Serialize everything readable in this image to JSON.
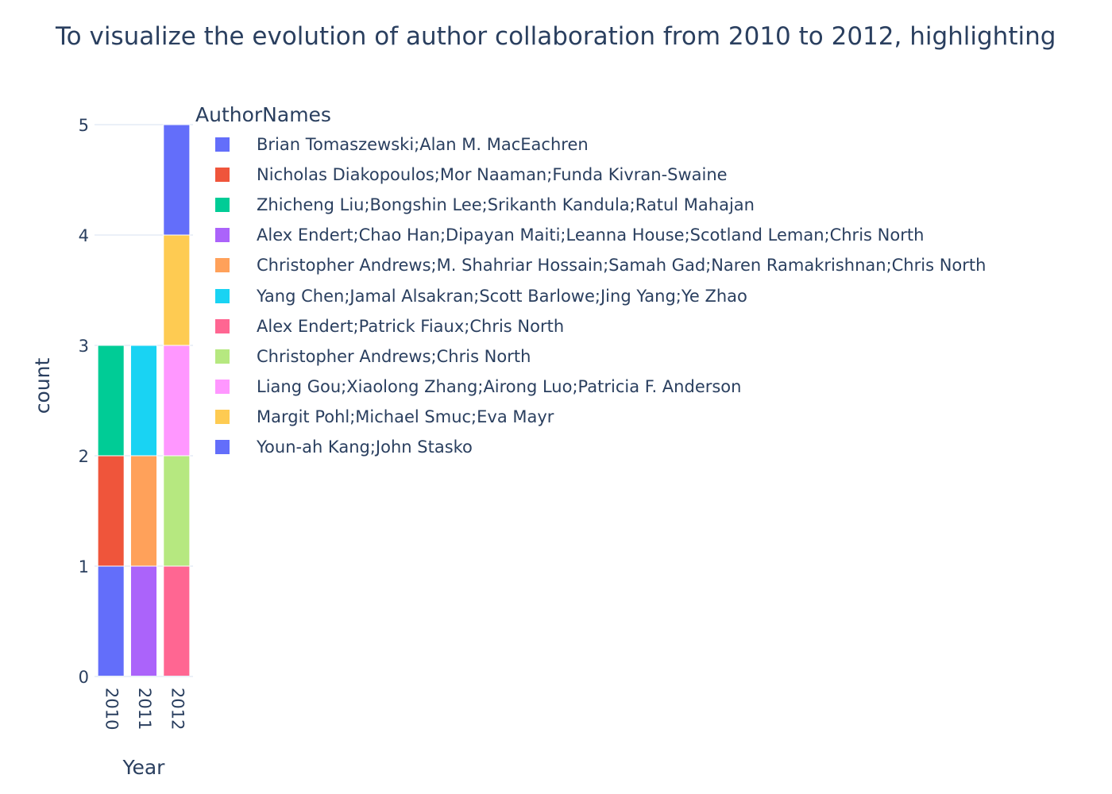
{
  "chart_data": {
    "type": "bar",
    "stacked": true,
    "title": "To visualize the evolution of author collaboration from 2010 to 2012, highlighting",
    "xlabel": "Year",
    "ylabel": "count",
    "categories": [
      "2010",
      "2011",
      "2012"
    ],
    "ylim": [
      0,
      5
    ],
    "yticks": [
      0,
      1,
      2,
      3,
      4,
      5
    ],
    "legend_title": "AuthorNames",
    "legend_position": "right",
    "grid": true,
    "series": [
      {
        "name": "Brian Tomaszewski;Alan M. MacEachren",
        "color": "#636efa",
        "values": [
          1,
          0,
          0
        ]
      },
      {
        "name": "Nicholas Diakopoulos;Mor Naaman;Funda Kivran-Swaine",
        "color": "#EF553B",
        "values": [
          1,
          0,
          0
        ]
      },
      {
        "name": "Zhicheng Liu;Bongshin Lee;Srikanth Kandula;Ratul Mahajan",
        "color": "#00cc96",
        "values": [
          1,
          0,
          0
        ]
      },
      {
        "name": "Alex Endert;Chao Han;Dipayan Maiti;Leanna House;Scotland Leman;Chris North",
        "color": "#ab63fa",
        "values": [
          0,
          1,
          0
        ]
      },
      {
        "name": "Christopher Andrews;M. Shahriar Hossain;Samah Gad;Naren Ramakrishnan;Chris North",
        "color": "#FFA15A",
        "values": [
          0,
          1,
          0
        ]
      },
      {
        "name": "Yang Chen;Jamal Alsakran;Scott Barlowe;Jing Yang;Ye Zhao",
        "color": "#19d3f3",
        "values": [
          0,
          1,
          0
        ]
      },
      {
        "name": "Alex Endert;Patrick Fiaux;Chris North",
        "color": "#FF6692",
        "values": [
          0,
          0,
          1
        ]
      },
      {
        "name": "Christopher Andrews;Chris North",
        "color": "#B6E880",
        "values": [
          0,
          0,
          1
        ]
      },
      {
        "name": "Liang Gou;Xiaolong Zhang;Airong Luo;Patricia F. Anderson",
        "color": "#FF97FF",
        "values": [
          0,
          0,
          1
        ]
      },
      {
        "name": "Margit Pohl;Michael Smuc;Eva Mayr",
        "color": "#FECB52",
        "values": [
          0,
          0,
          1
        ]
      },
      {
        "name": "Youn-ah Kang;John Stasko",
        "color": "#636efa",
        "values": [
          0,
          0,
          1
        ]
      }
    ]
  }
}
